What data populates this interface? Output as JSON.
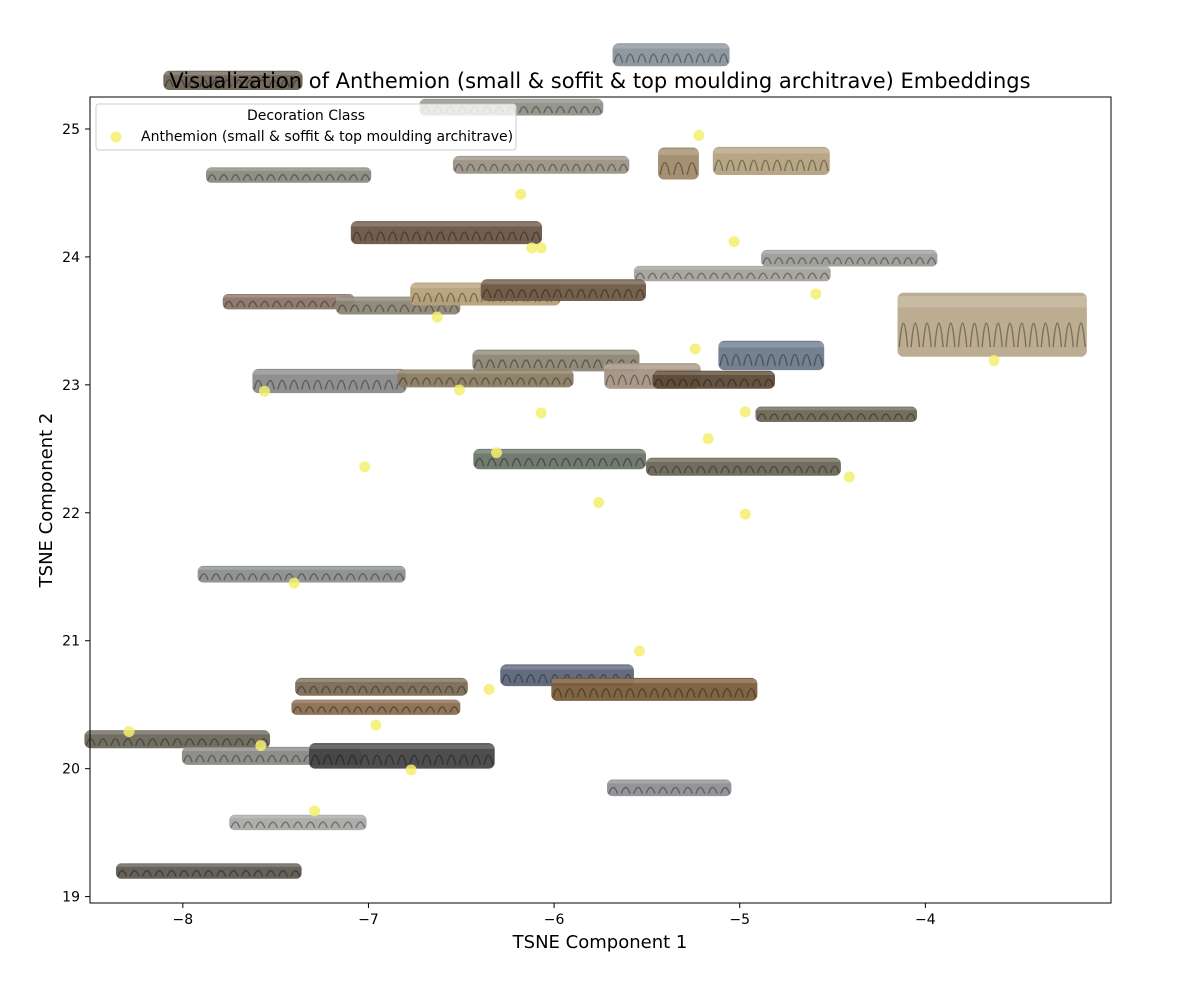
{
  "colors": {
    "point": "#f5ee6e",
    "axes": "#000000",
    "background": "#ffffff"
  },
  "chart_data": {
    "type": "scatter",
    "title": "Visualization of Anthemion (small & soffit & top moulding architrave) Embeddings",
    "xlabel": "TSNE Component 1",
    "ylabel": "TSNE Component 2",
    "xlim": [
      -8.5,
      -3.0
    ],
    "ylim": [
      18.95,
      25.25
    ],
    "x_ticks": [
      -8,
      -7,
      -6,
      -5,
      -4
    ],
    "y_ticks": [
      19,
      20,
      21,
      22,
      23,
      24,
      25
    ],
    "x_tick_labels": [
      "−8",
      "−7",
      "−6",
      "−5",
      "−4"
    ],
    "y_tick_labels": [
      "19",
      "20",
      "21",
      "22",
      "23",
      "24",
      "25"
    ],
    "grid": false,
    "legend": {
      "title": "Decoration Class",
      "placement": "top-left",
      "entries": [
        "Anthemion (small & soffit & top moulding architrave)"
      ]
    },
    "series": [
      {
        "name": "Anthemion (small & soffit & top moulding architrave)",
        "points": [
          {
            "x": -5.22,
            "y": 24.95
          },
          {
            "x": -6.18,
            "y": 24.49
          },
          {
            "x": -6.12,
            "y": 24.07
          },
          {
            "x": -6.07,
            "y": 24.07
          },
          {
            "x": -5.03,
            "y": 24.12
          },
          {
            "x": -4.59,
            "y": 23.71
          },
          {
            "x": -6.63,
            "y": 23.53
          },
          {
            "x": -5.24,
            "y": 23.28
          },
          {
            "x": -3.63,
            "y": 23.19
          },
          {
            "x": -7.56,
            "y": 22.95
          },
          {
            "x": -6.51,
            "y": 22.96
          },
          {
            "x": -6.07,
            "y": 22.78
          },
          {
            "x": -4.97,
            "y": 22.79
          },
          {
            "x": -5.17,
            "y": 22.58
          },
          {
            "x": -6.31,
            "y": 22.47
          },
          {
            "x": -7.02,
            "y": 22.36
          },
          {
            "x": -4.41,
            "y": 22.28
          },
          {
            "x": -5.76,
            "y": 22.08
          },
          {
            "x": -4.97,
            "y": 21.99
          },
          {
            "x": -7.4,
            "y": 21.45
          },
          {
            "x": -5.54,
            "y": 20.92
          },
          {
            "x": -6.35,
            "y": 20.62
          },
          {
            "x": -6.96,
            "y": 20.34
          },
          {
            "x": -8.29,
            "y": 20.29
          },
          {
            "x": -7.58,
            "y": 20.18
          },
          {
            "x": -6.77,
            "y": 19.99
          },
          {
            "x": -7.29,
            "y": 19.67
          }
        ]
      }
    ],
    "thumbnails": [
      {
        "x": -5.37,
        "y": 25.58,
        "w": 0.63,
        "h": 0.18,
        "tone": "#8a949c"
      },
      {
        "x": -7.73,
        "y": 25.38,
        "w": 0.75,
        "h": 0.15,
        "tone": "#6d6254"
      },
      {
        "x": -6.23,
        "y": 25.17,
        "w": 0.99,
        "h": 0.13,
        "tone": "#8f9088"
      },
      {
        "x": -6.07,
        "y": 24.72,
        "w": 0.95,
        "h": 0.14,
        "tone": "#9c9286"
      },
      {
        "x": -5.33,
        "y": 24.73,
        "w": 0.22,
        "h": 0.25,
        "tone": "#a08a6a"
      },
      {
        "x": -4.83,
        "y": 24.75,
        "w": 0.63,
        "h": 0.22,
        "tone": "#b3a280"
      },
      {
        "x": -7.43,
        "y": 24.64,
        "w": 0.89,
        "h": 0.12,
        "tone": "#8b8a80"
      },
      {
        "x": -6.58,
        "y": 24.19,
        "w": 1.03,
        "h": 0.18,
        "tone": "#6a5544"
      },
      {
        "x": -4.41,
        "y": 23.99,
        "w": 0.95,
        "h": 0.13,
        "tone": "#9c9c98"
      },
      {
        "x": -5.04,
        "y": 23.87,
        "w": 1.06,
        "h": 0.12,
        "tone": "#a4a29a"
      },
      {
        "x": -7.43,
        "y": 23.65,
        "w": 0.71,
        "h": 0.12,
        "tone": "#8a7466"
      },
      {
        "x": -6.84,
        "y": 23.62,
        "w": 0.67,
        "h": 0.14,
        "tone": "#8c8676"
      },
      {
        "x": -6.37,
        "y": 23.71,
        "w": 0.81,
        "h": 0.18,
        "tone": "#b6a07a"
      },
      {
        "x": -5.95,
        "y": 23.74,
        "w": 0.89,
        "h": 0.17,
        "tone": "#6e5a44"
      },
      {
        "x": -3.64,
        "y": 23.47,
        "w": 1.02,
        "h": 0.5,
        "tone": "#b8a88a"
      },
      {
        "x": -4.83,
        "y": 23.23,
        "w": 0.57,
        "h": 0.23,
        "tone": "#6c7a8a"
      },
      {
        "x": -5.99,
        "y": 23.19,
        "w": 0.9,
        "h": 0.17,
        "tone": "#8c8676"
      },
      {
        "x": -7.21,
        "y": 23.03,
        "w": 0.83,
        "h": 0.19,
        "tone": "#8a8a8a"
      },
      {
        "x": -6.37,
        "y": 23.05,
        "w": 0.95,
        "h": 0.14,
        "tone": "#8a7c62"
      },
      {
        "x": -5.47,
        "y": 23.07,
        "w": 0.52,
        "h": 0.2,
        "tone": "#a49484"
      },
      {
        "x": -5.14,
        "y": 23.04,
        "w": 0.66,
        "h": 0.14,
        "tone": "#5c4a36"
      },
      {
        "x": -4.48,
        "y": 22.77,
        "w": 0.87,
        "h": 0.12,
        "tone": "#6c6654"
      },
      {
        "x": -5.97,
        "y": 22.42,
        "w": 0.93,
        "h": 0.16,
        "tone": "#6a7468"
      },
      {
        "x": -4.98,
        "y": 22.36,
        "w": 1.05,
        "h": 0.14,
        "tone": "#6a6656"
      },
      {
        "x": -7.36,
        "y": 21.52,
        "w": 1.12,
        "h": 0.13,
        "tone": "#8a8e8c"
      },
      {
        "x": -5.93,
        "y": 20.73,
        "w": 0.72,
        "h": 0.17,
        "tone": "#5c6478"
      },
      {
        "x": -6.93,
        "y": 20.64,
        "w": 0.93,
        "h": 0.14,
        "tone": "#7a6a56"
      },
      {
        "x": -5.46,
        "y": 20.62,
        "w": 1.11,
        "h": 0.18,
        "tone": "#7a5c3a"
      },
      {
        "x": -6.96,
        "y": 20.48,
        "w": 0.91,
        "h": 0.12,
        "tone": "#8a6e52"
      },
      {
        "x": -8.03,
        "y": 20.23,
        "w": 1.0,
        "h": 0.14,
        "tone": "#6a665a"
      },
      {
        "x": -7.52,
        "y": 20.1,
        "w": 0.97,
        "h": 0.14,
        "tone": "#8a8884"
      },
      {
        "x": -6.82,
        "y": 20.1,
        "w": 1.0,
        "h": 0.2,
        "tone": "#444444"
      },
      {
        "x": -5.38,
        "y": 19.85,
        "w": 0.67,
        "h": 0.13,
        "tone": "#8e8e94"
      },
      {
        "x": -7.38,
        "y": 19.58,
        "w": 0.74,
        "h": 0.12,
        "tone": "#a8aaa6"
      },
      {
        "x": -7.86,
        "y": 19.2,
        "w": 1.0,
        "h": 0.12,
        "tone": "#5e5a50"
      }
    ]
  }
}
